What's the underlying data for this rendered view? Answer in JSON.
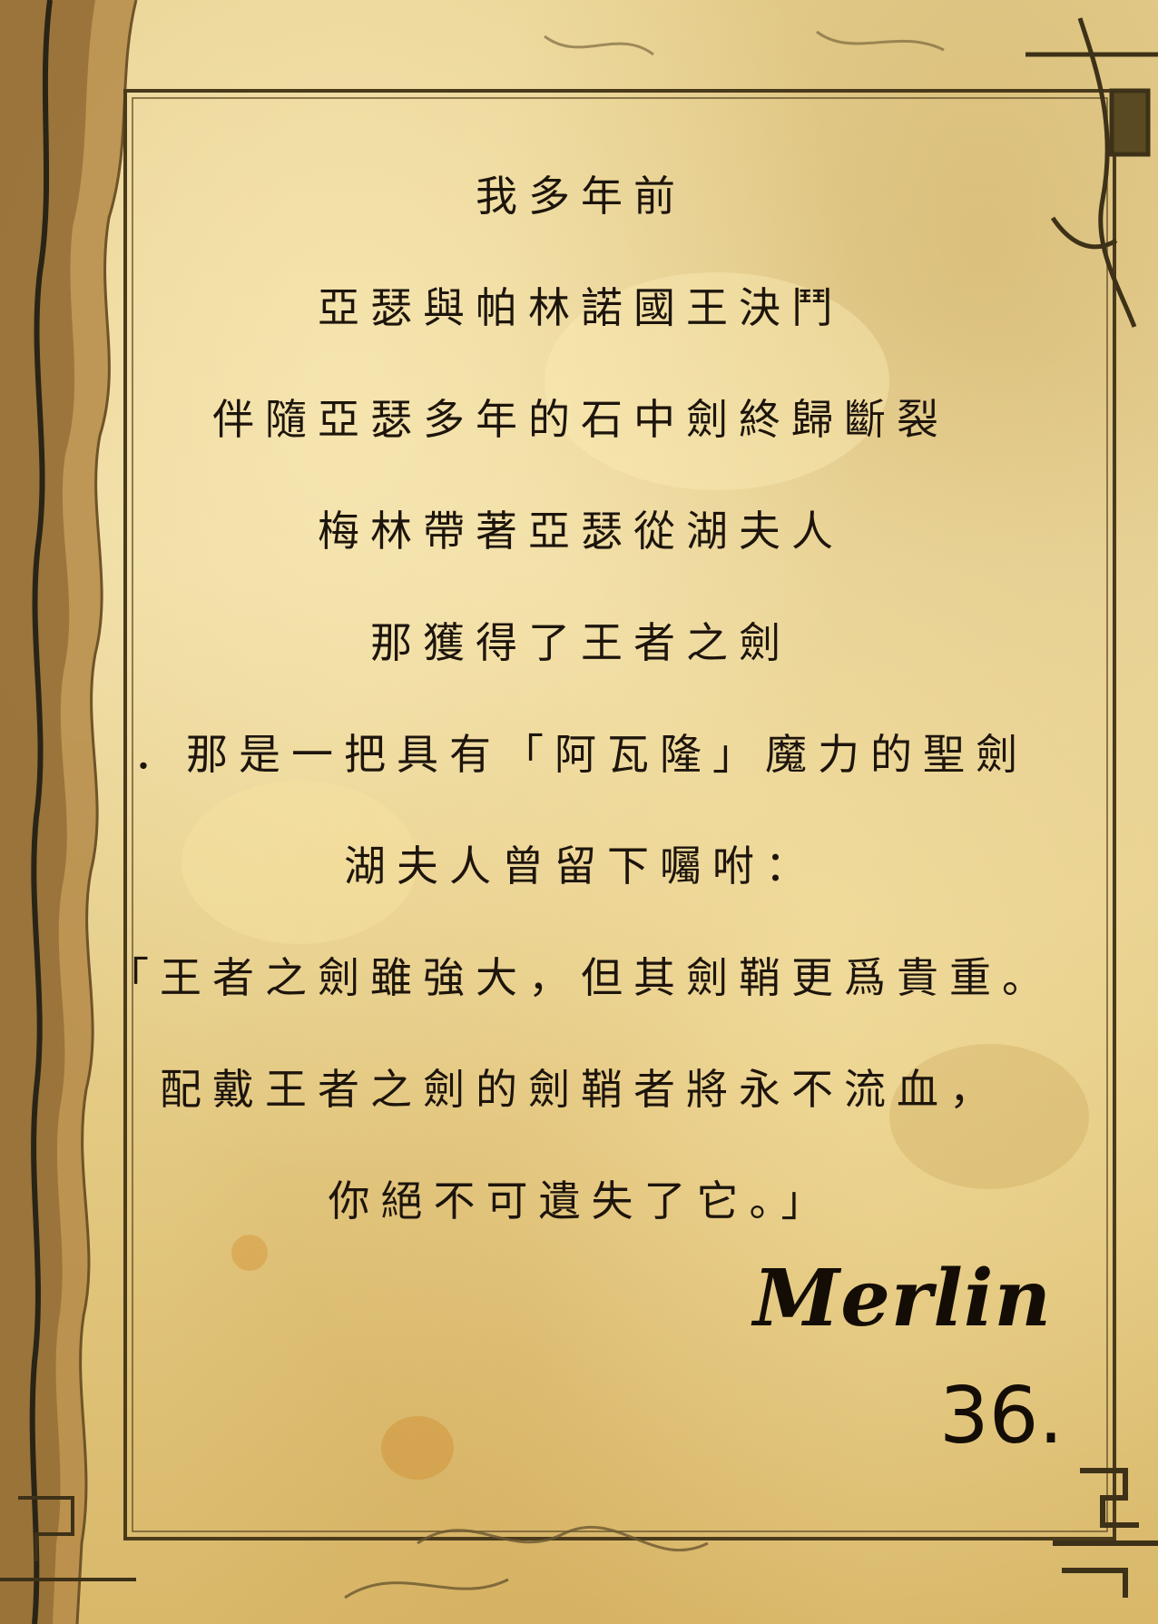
{
  "letter": {
    "lines": [
      "我多年前",
      "亞瑟與帕林諾國王決鬥",
      "伴隨亞瑟多年的石中劍終歸斷裂",
      "梅林帶著亞瑟從湖夫人",
      "那獲得了王者之劍",
      "．那是一把具有「阿瓦隆」魔力的聖劍",
      "湖夫人曾留下囑咐：",
      "「王者之劍雖強大，但其劍鞘更爲貴重。",
      "配戴王者之劍的劍鞘者將永不流血，",
      "你絕不可遺失了它。」"
    ],
    "signature": "Merlin",
    "page_number": "36."
  },
  "colors": {
    "parchment": "#e8d293",
    "ink": "#1d150c",
    "frame": "#4a3a1c"
  }
}
